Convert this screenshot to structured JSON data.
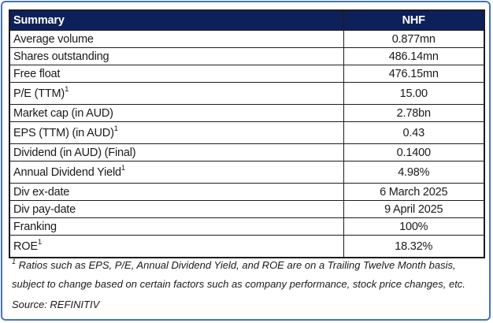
{
  "table": {
    "header": {
      "summary": "Summary",
      "ticker": "NHF"
    },
    "rows": [
      {
        "label": "Average volume",
        "sup": "",
        "value": "0.877mn"
      },
      {
        "label": "Shares outstanding",
        "sup": "",
        "value": "486.14mn"
      },
      {
        "label": "Free float",
        "sup": "",
        "value": "476.15mn"
      },
      {
        "label": "P/E (TTM)",
        "sup": "1",
        "value": "15.00"
      },
      {
        "label": "Market cap (in AUD)",
        "sup": "",
        "value": "2.78bn"
      },
      {
        "label": "EPS (TTM) (in AUD)",
        "sup": "1",
        "value": "0.43"
      },
      {
        "label": "Dividend (in AUD) (Final)",
        "sup": "",
        "value": "0.1400"
      },
      {
        "label": "Annual Dividend Yield",
        "sup": "1",
        "value": "4.98%"
      },
      {
        "label": "Div ex-date",
        "sup": "",
        "value": "6 March 2025"
      },
      {
        "label": "Div pay-date",
        "sup": "",
        "value": "9 April 2025"
      },
      {
        "label": "Franking",
        "sup": "",
        "value": "100%"
      },
      {
        "label": "ROE",
        "sup": "1",
        "value": "18.32%"
      }
    ]
  },
  "footnote": {
    "sup": "1",
    "line1": " Ratios such as EPS, P/E, Annual Dividend Yield, and ROE are on a Trailing Twelve Month basis,",
    "line2": "subject to change based on certain factors such as company performance, stock price changes, etc."
  },
  "source": "Source: REFINITIV",
  "colors": {
    "header_bg": "#0e2059",
    "header_text": "#ffffff",
    "outer_border": "#4472C4",
    "table_border": "#1c1c1c"
  }
}
